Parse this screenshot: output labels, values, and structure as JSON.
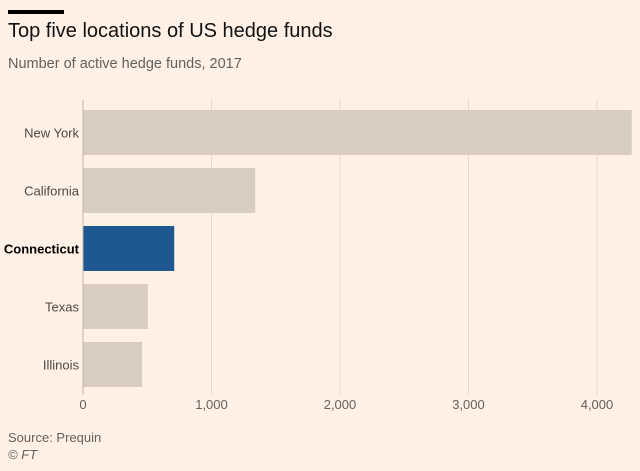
{
  "title": "Top five locations of US hedge funds",
  "subtitle": "Number of active hedge funds, 2017",
  "source": "Source: Prequin",
  "credit": "© FT",
  "chart_data": {
    "type": "bar",
    "orientation": "horizontal",
    "title": "Top five locations of US hedge funds",
    "subtitle": "Number of active hedge funds, 2017",
    "categories": [
      "New York",
      "California",
      "Connecticut",
      "Texas",
      "Illinois"
    ],
    "values": [
      4270,
      1340,
      710,
      505,
      460
    ],
    "highlight": "Connecticut",
    "colors": {
      "default": "#d9ccc1",
      "highlight": "#1f5790",
      "grid": "#e6d9ce"
    },
    "xlim": [
      0,
      4270
    ],
    "xticks": [
      0,
      1000,
      2000,
      3000,
      4000
    ],
    "xtick_labels": [
      "0",
      "1,000",
      "2,000",
      "3,000",
      "4,000"
    ],
    "grid": true
  }
}
